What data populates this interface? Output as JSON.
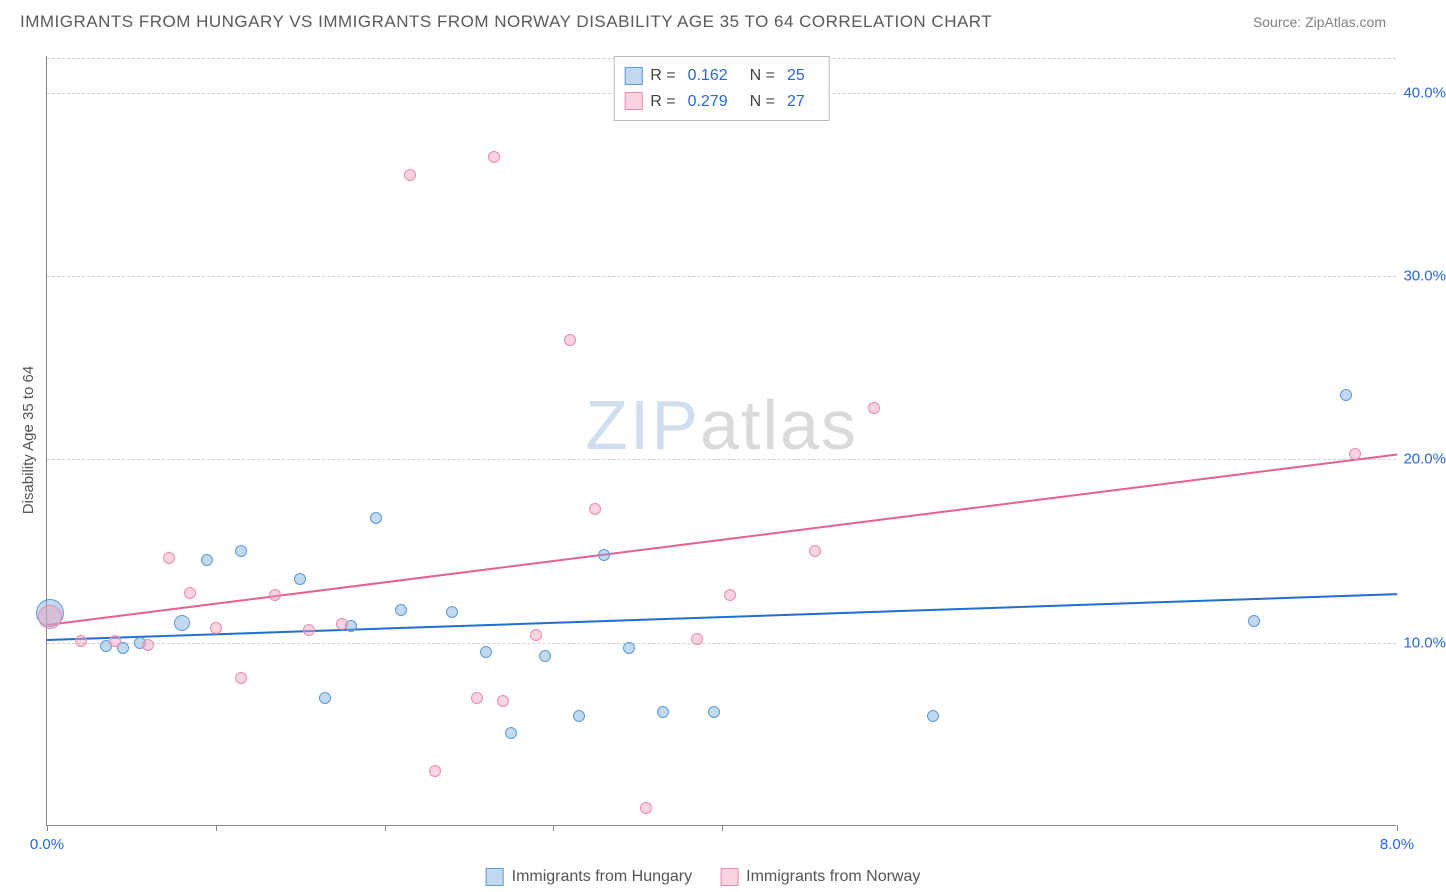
{
  "header": {
    "title": "IMMIGRANTS FROM HUNGARY VS IMMIGRANTS FROM NORWAY DISABILITY AGE 35 TO 64 CORRELATION CHART",
    "source": "Source: ZipAtlas.com"
  },
  "chart": {
    "type": "scatter",
    "y_axis_title": "Disability Age 35 to 64",
    "xlim": [
      0.0,
      8.0
    ],
    "ylim": [
      0.0,
      42.0
    ],
    "x_ticks": [
      0.0,
      1.0,
      2.0,
      3.0,
      4.0,
      8.0
    ],
    "x_tick_labels": {
      "0": "0.0%",
      "8": "8.0%"
    },
    "y_gridlines": [
      10.0,
      20.0,
      30.0,
      40.0
    ],
    "y_tick_labels": {
      "10": "10.0%",
      "20": "20.0%",
      "30": "30.0%",
      "40": "40.0%"
    },
    "background_color": "#ffffff",
    "grid_color": "#d0d0d0",
    "axis_color": "#888888",
    "series": [
      {
        "key": "hungary",
        "label": "Immigrants from Hungary",
        "R_label": "R =",
        "R": "0.162",
        "N_label": "N =",
        "N": "25",
        "fill": "rgba(120,170,220,0.45)",
        "stroke": "#5a9bd5",
        "trend_color": "#1f6fd4",
        "trend": {
          "x1": 0.0,
          "y1": 10.2,
          "x2": 8.0,
          "y2": 12.7
        },
        "points": [
          {
            "x": 0.02,
            "y": 11.6,
            "r": 14
          },
          {
            "x": 0.35,
            "y": 9.8,
            "r": 6
          },
          {
            "x": 0.45,
            "y": 9.7,
            "r": 6
          },
          {
            "x": 0.55,
            "y": 10.0,
            "r": 6
          },
          {
            "x": 0.8,
            "y": 11.1,
            "r": 8
          },
          {
            "x": 0.95,
            "y": 14.5,
            "r": 6
          },
          {
            "x": 1.15,
            "y": 15.0,
            "r": 6
          },
          {
            "x": 1.5,
            "y": 13.5,
            "r": 6
          },
          {
            "x": 1.65,
            "y": 7.0,
            "r": 6
          },
          {
            "x": 1.8,
            "y": 10.9,
            "r": 6
          },
          {
            "x": 1.95,
            "y": 16.8,
            "r": 6
          },
          {
            "x": 2.1,
            "y": 11.8,
            "r": 6
          },
          {
            "x": 2.4,
            "y": 11.7,
            "r": 6
          },
          {
            "x": 2.6,
            "y": 9.5,
            "r": 6
          },
          {
            "x": 2.75,
            "y": 5.1,
            "r": 6
          },
          {
            "x": 2.95,
            "y": 9.3,
            "r": 6
          },
          {
            "x": 3.15,
            "y": 6.0,
            "r": 6
          },
          {
            "x": 3.3,
            "y": 14.8,
            "r": 6
          },
          {
            "x": 3.45,
            "y": 9.7,
            "r": 6
          },
          {
            "x": 3.65,
            "y": 6.2,
            "r": 6
          },
          {
            "x": 3.95,
            "y": 6.2,
            "r": 6
          },
          {
            "x": 5.25,
            "y": 6.0,
            "r": 6
          },
          {
            "x": 7.15,
            "y": 11.2,
            "r": 6
          },
          {
            "x": 7.7,
            "y": 23.5,
            "r": 6
          }
        ]
      },
      {
        "key": "norway",
        "label": "Immigrants from Norway",
        "R_label": "R =",
        "R": "0.279",
        "N_label": "N =",
        "N": "27",
        "fill": "rgba(240,160,190,0.45)",
        "stroke": "#e98bb0",
        "trend_color": "#e85f95",
        "trend": {
          "x1": 0.0,
          "y1": 11.0,
          "x2": 8.0,
          "y2": 20.3
        },
        "points": [
          {
            "x": 0.02,
            "y": 11.4,
            "r": 12
          },
          {
            "x": 0.2,
            "y": 10.1,
            "r": 6
          },
          {
            "x": 0.4,
            "y": 10.1,
            "r": 6
          },
          {
            "x": 0.6,
            "y": 9.9,
            "r": 6
          },
          {
            "x": 0.72,
            "y": 14.6,
            "r": 6
          },
          {
            "x": 0.85,
            "y": 12.7,
            "r": 6
          },
          {
            "x": 1.0,
            "y": 10.8,
            "r": 6
          },
          {
            "x": 1.15,
            "y": 8.1,
            "r": 6
          },
          {
            "x": 1.35,
            "y": 12.6,
            "r": 6
          },
          {
            "x": 1.55,
            "y": 10.7,
            "r": 6
          },
          {
            "x": 1.75,
            "y": 11.0,
            "r": 6
          },
          {
            "x": 2.15,
            "y": 35.5,
            "r": 6
          },
          {
            "x": 2.3,
            "y": 3.0,
            "r": 6
          },
          {
            "x": 2.55,
            "y": 7.0,
            "r": 6
          },
          {
            "x": 2.65,
            "y": 36.5,
            "r": 6
          },
          {
            "x": 2.7,
            "y": 6.8,
            "r": 6
          },
          {
            "x": 2.9,
            "y": 10.4,
            "r": 6
          },
          {
            "x": 3.1,
            "y": 26.5,
            "r": 6
          },
          {
            "x": 3.25,
            "y": 17.3,
            "r": 6
          },
          {
            "x": 3.55,
            "y": 1.0,
            "r": 6
          },
          {
            "x": 3.85,
            "y": 10.2,
            "r": 6
          },
          {
            "x": 4.05,
            "y": 12.6,
            "r": 6
          },
          {
            "x": 4.55,
            "y": 15.0,
            "r": 6
          },
          {
            "x": 4.9,
            "y": 22.8,
            "r": 6
          },
          {
            "x": 7.75,
            "y": 20.3,
            "r": 6
          }
        ]
      }
    ]
  },
  "watermark": {
    "part1": "ZIP",
    "part2": "atlas"
  }
}
